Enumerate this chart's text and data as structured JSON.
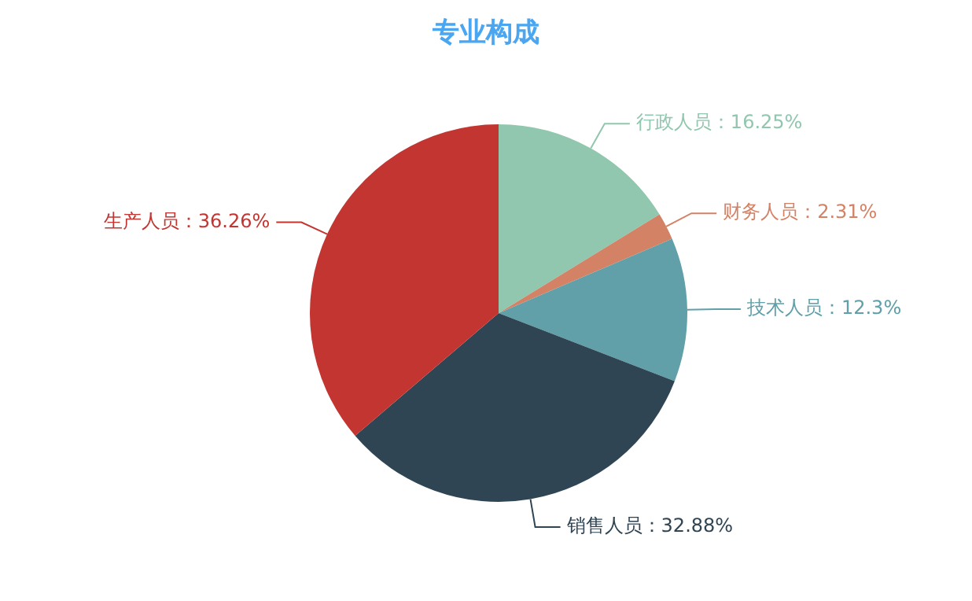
{
  "chart_data": {
    "type": "pie",
    "title": "专业构成",
    "categories": [
      "行政人员",
      "财务人员",
      "技术人员",
      "销售人员",
      "生产人员"
    ],
    "values": [
      16.25,
      2.31,
      12.3,
      32.88,
      36.26
    ],
    "colors": [
      "#91c7ae",
      "#d48265",
      "#61a0a8",
      "#2f4554",
      "#c23531"
    ],
    "value_labels": [
      "：16.25%",
      "：2.31%",
      "：12.3%",
      "：32.88%",
      "：36.26%"
    ]
  }
}
